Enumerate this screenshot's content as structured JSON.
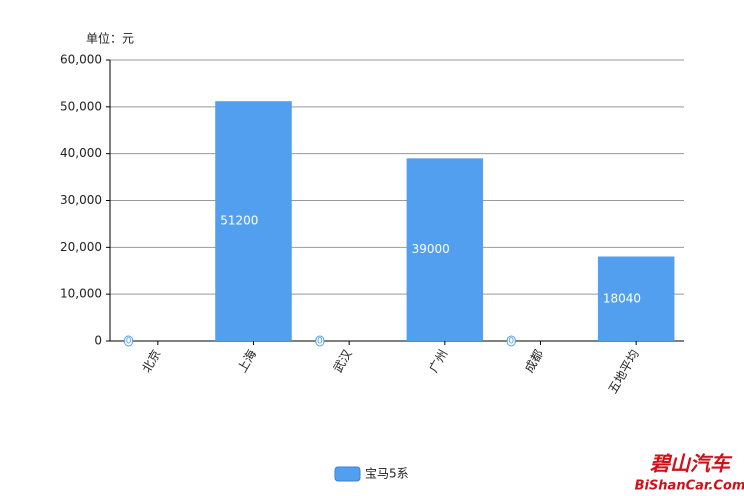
{
  "chart_data": {
    "type": "bar",
    "unit_label": "单位：元",
    "categories": [
      "北京",
      "上海",
      "武汉",
      "广州",
      "成都",
      "五地平均"
    ],
    "series": [
      {
        "name": "宝马5系",
        "color": "#539fef",
        "values": [
          0,
          51200,
          0,
          39000,
          0,
          18040
        ]
      }
    ],
    "ylim": [
      0,
      60000
    ],
    "yticks": [
      0,
      {
        "value": 10000,
        "label": "10,000"
      },
      {
        "value": 20000,
        "label": "20,000"
      },
      {
        "value": 30000,
        "label": "30,000"
      },
      {
        "value": 40000,
        "label": "40,000"
      },
      {
        "value": 50000,
        "label": "50,000"
      },
      {
        "value": 60000,
        "label": "60,000"
      }
    ],
    "grid": true,
    "legend": "bottom",
    "watermark": [
      "碧山汽车",
      "BiShanCar.Com"
    ]
  }
}
